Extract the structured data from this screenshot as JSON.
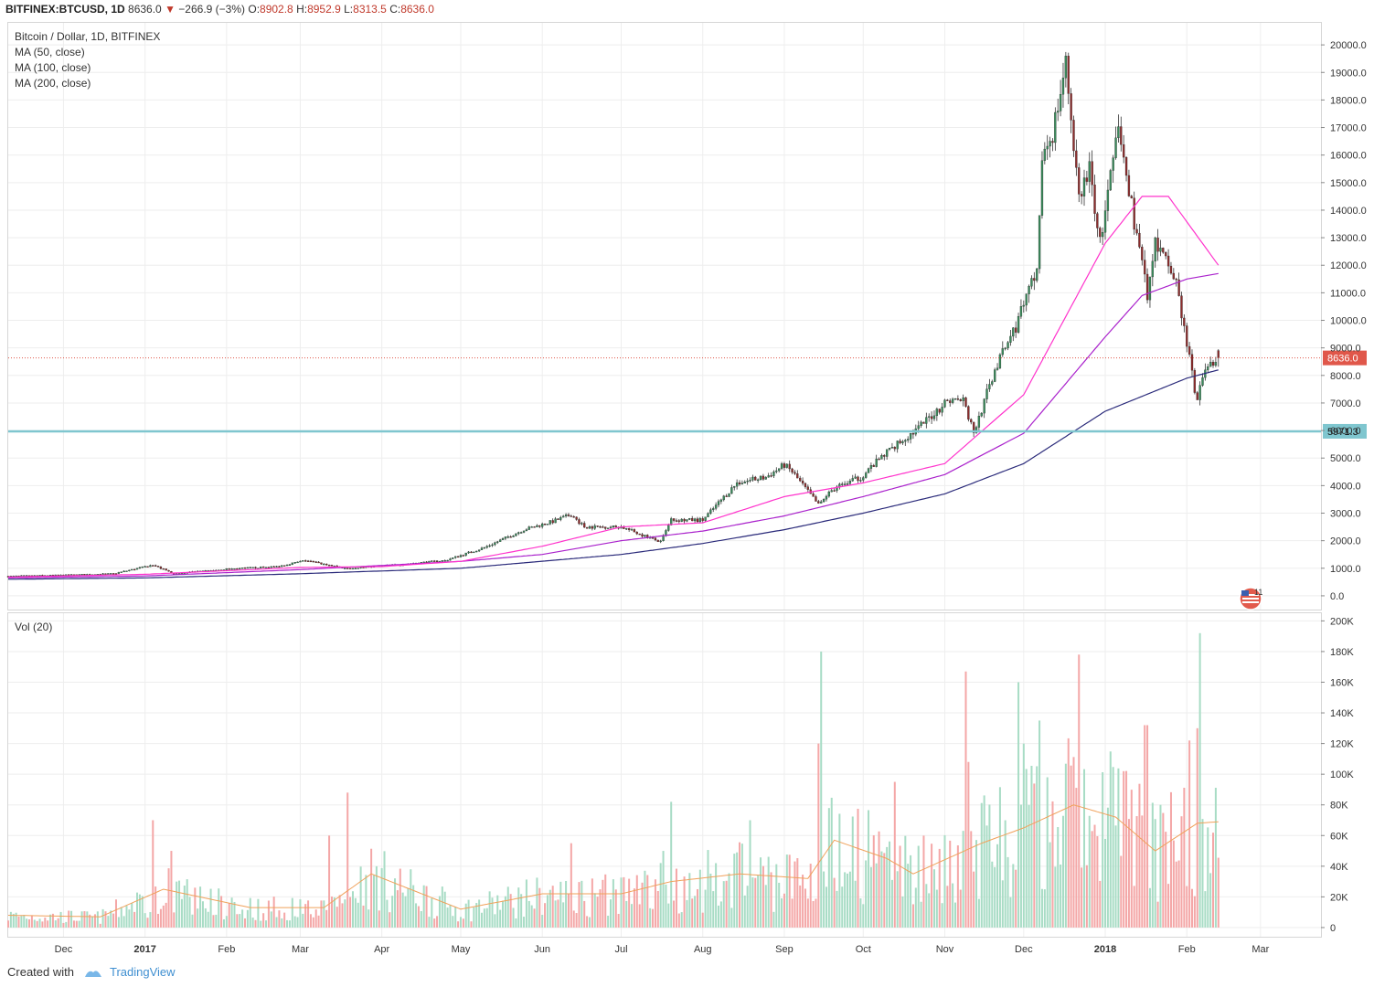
{
  "header": {
    "symbol": "BITFINEX:BTCUSD, 1D",
    "last": "8636.0",
    "change_arrow": "▼",
    "change": "−266.9 (−3%)",
    "o_label": "O:",
    "o_value": "8902.8",
    "h_label": "H:",
    "h_value": "8952.9",
    "l_label": "L:",
    "l_value": "8313.5",
    "c_label": "C:",
    "c_value": "8636.0"
  },
  "legend": {
    "title": "Bitcoin / Dollar, 1D, BITFINEX",
    "ma50": "MA (50, close)",
    "ma100": "MA (100, close)",
    "ma200": "MA (200, close)",
    "volume": "Vol (20)"
  },
  "footer": {
    "created_with": "Created with",
    "brand": "TradingView"
  },
  "colors": {
    "up": "#3a8c5c",
    "down": "#8e2c2c",
    "ma50": "#ff33cc",
    "ma100": "#aa22cc",
    "ma200": "#2a2a7a",
    "support": "#7fc6cf",
    "last_price": "#e0574a",
    "vol_up": "#a8dcc5",
    "vol_down": "#f4a7a7",
    "vol_ma": "#f0a15a"
  },
  "chart_data": [
    {
      "type": "candlestick",
      "title": "Bitcoin / Dollar, 1D, BITFINEX",
      "y_axis_ticks": [
        0,
        1000,
        2000,
        3000,
        4000,
        5000,
        6000,
        7000,
        8000,
        9000,
        10000,
        11000,
        12000,
        13000,
        14000,
        15000,
        16000,
        17000,
        18000,
        19000,
        20000
      ],
      "x_axis_ticks": [
        "Dec",
        "2017",
        "Feb",
        "Mar",
        "Apr",
        "May",
        "Jun",
        "Jul",
        "Aug",
        "Sep",
        "Oct",
        "Nov",
        "Dec",
        "2018",
        "Feb",
        "Mar"
      ],
      "x_range": [
        "2016-11-10",
        "2018-03-24"
      ],
      "y_range": [
        -500,
        20800
      ],
      "price_anchors": [
        [
          "2016-11-10",
          710
        ],
        [
          "2016-12-01",
          750
        ],
        [
          "2016-12-20",
          800
        ],
        [
          "2017-01-04",
          1120
        ],
        [
          "2017-01-12",
          800
        ],
        [
          "2017-02-01",
          970
        ],
        [
          "2017-02-20",
          1060
        ],
        [
          "2017-03-03",
          1280
        ],
        [
          "2017-03-18",
          1000
        ],
        [
          "2017-04-01",
          1080
        ],
        [
          "2017-04-25",
          1280
        ],
        [
          "2017-05-10",
          1750
        ],
        [
          "2017-05-25",
          2400
        ],
        [
          "2017-06-05",
          2700
        ],
        [
          "2017-06-12",
          2950
        ],
        [
          "2017-06-17",
          2500
        ],
        [
          "2017-07-01",
          2500
        ],
        [
          "2017-07-16",
          1950
        ],
        [
          "2017-07-20",
          2750
        ],
        [
          "2017-08-01",
          2750
        ],
        [
          "2017-08-14",
          4100
        ],
        [
          "2017-08-25",
          4300
        ],
        [
          "2017-09-01",
          4750
        ],
        [
          "2017-09-04",
          4500
        ],
        [
          "2017-09-14",
          3300
        ],
        [
          "2017-09-20",
          3900
        ],
        [
          "2017-09-30",
          4300
        ],
        [
          "2017-10-12",
          5400
        ],
        [
          "2017-10-21",
          6000
        ],
        [
          "2017-11-02",
          7100
        ],
        [
          "2017-11-08",
          7100
        ],
        [
          "2017-11-12",
          5900
        ],
        [
          "2017-11-20",
          8200
        ],
        [
          "2017-11-28",
          9800
        ],
        [
          "2017-12-06",
          11800
        ],
        [
          "2017-12-08",
          16000
        ],
        [
          "2017-12-12",
          16800
        ],
        [
          "2017-12-17",
          19300
        ],
        [
          "2017-12-22",
          14500
        ],
        [
          "2017-12-26",
          15500
        ],
        [
          "2017-12-30",
          12800
        ],
        [
          "2018-01-06",
          16900
        ],
        [
          "2018-01-10",
          14700
        ],
        [
          "2018-01-17",
          11000
        ],
        [
          "2018-01-20",
          12800
        ],
        [
          "2018-01-28",
          11400
        ],
        [
          "2018-02-01",
          9100
        ],
        [
          "2018-02-05",
          7000
        ],
        [
          "2018-02-06",
          7600
        ],
        [
          "2018-02-10",
          8500
        ],
        [
          "2018-02-13",
          8636
        ]
      ],
      "ohlc_last": {
        "date": "2018-02-13",
        "open": 8902.8,
        "high": 8952.9,
        "low": 8313.5,
        "close": 8636.0
      },
      "ma50": [
        [
          "2016-11-10",
          680
        ],
        [
          "2017-01-01",
          780
        ],
        [
          "2017-03-01",
          1030
        ],
        [
          "2017-04-01",
          1060
        ],
        [
          "2017-05-01",
          1250
        ],
        [
          "2017-06-01",
          1800
        ],
        [
          "2017-07-01",
          2500
        ],
        [
          "2017-08-01",
          2650
        ],
        [
          "2017-09-01",
          3600
        ],
        [
          "2017-10-01",
          4100
        ],
        [
          "2017-11-01",
          4800
        ],
        [
          "2017-12-01",
          7300
        ],
        [
          "2018-01-01",
          12800
        ],
        [
          "2018-01-15",
          14500
        ],
        [
          "2018-01-25",
          14500
        ],
        [
          "2018-02-13",
          12000
        ]
      ],
      "ma100": [
        [
          "2016-11-10",
          650
        ],
        [
          "2017-01-01",
          720
        ],
        [
          "2017-03-01",
          950
        ],
        [
          "2017-05-01",
          1250
        ],
        [
          "2017-06-01",
          1500
        ],
        [
          "2017-07-01",
          2000
        ],
        [
          "2017-08-01",
          2350
        ],
        [
          "2017-09-01",
          2900
        ],
        [
          "2017-10-01",
          3600
        ],
        [
          "2017-11-01",
          4400
        ],
        [
          "2017-12-01",
          5900
        ],
        [
          "2018-01-01",
          9400
        ],
        [
          "2018-01-15",
          10900
        ],
        [
          "2018-02-01",
          11500
        ],
        [
          "2018-02-13",
          11700
        ]
      ],
      "ma200": [
        [
          "2016-11-10",
          600
        ],
        [
          "2017-01-01",
          650
        ],
        [
          "2017-03-01",
          800
        ],
        [
          "2017-05-01",
          1000
        ],
        [
          "2017-07-01",
          1500
        ],
        [
          "2017-08-01",
          1900
        ],
        [
          "2017-09-01",
          2400
        ],
        [
          "2017-10-01",
          3000
        ],
        [
          "2017-11-01",
          3700
        ],
        [
          "2017-12-01",
          4800
        ],
        [
          "2018-01-01",
          6700
        ],
        [
          "2018-02-01",
          7900
        ],
        [
          "2018-02-13",
          8200
        ]
      ],
      "support_level": 5971.3,
      "last_price": 8636.0,
      "price_label": "8636.0",
      "support_label": "5971.3",
      "grid": true
    },
    {
      "type": "bar",
      "title": "Vol (20)",
      "y_axis_ticks": [
        "0",
        "20K",
        "40K",
        "60K",
        "80K",
        "100K",
        "120K",
        "140K",
        "160K",
        "180K",
        "200K"
      ],
      "y_range": [
        -6000,
        205000
      ],
      "volume_peaks": [
        [
          "2017-01-04",
          70000
        ],
        [
          "2017-01-11",
          50000
        ],
        [
          "2017-03-12",
          60000
        ],
        [
          "2017-03-19",
          88000
        ],
        [
          "2017-06-12",
          55000
        ],
        [
          "2017-07-17",
          50000
        ],
        [
          "2017-07-20",
          82000
        ],
        [
          "2017-08-19",
          70000
        ],
        [
          "2017-09-14",
          120000
        ],
        [
          "2017-09-15",
          180000
        ],
        [
          "2017-10-13",
          95000
        ],
        [
          "2017-11-09",
          167000
        ],
        [
          "2017-11-10",
          108000
        ],
        [
          "2017-11-29",
          160000
        ],
        [
          "2017-12-01",
          120000
        ],
        [
          "2017-12-07",
          135000
        ],
        [
          "2017-12-22",
          178000
        ],
        [
          "2018-01-16",
          132000
        ],
        [
          "2018-01-17",
          132000
        ],
        [
          "2018-02-02",
          122000
        ],
        [
          "2018-02-05",
          130000
        ],
        [
          "2018-02-06",
          192000
        ]
      ],
      "volume_ma_anchors": [
        [
          "2016-11-10",
          8000
        ],
        [
          "2016-12-15",
          7000
        ],
        [
          "2017-01-08",
          25000
        ],
        [
          "2017-02-10",
          13000
        ],
        [
          "2017-03-10",
          13000
        ],
        [
          "2017-03-28",
          35000
        ],
        [
          "2017-05-01",
          12000
        ],
        [
          "2017-06-01",
          22000
        ],
        [
          "2017-07-01",
          22000
        ],
        [
          "2017-07-20",
          30000
        ],
        [
          "2017-08-15",
          35000
        ],
        [
          "2017-09-10",
          32000
        ],
        [
          "2017-09-20",
          57000
        ],
        [
          "2017-10-10",
          45000
        ],
        [
          "2017-10-20",
          35000
        ],
        [
          "2017-11-15",
          55000
        ],
        [
          "2017-12-01",
          65000
        ],
        [
          "2017-12-20",
          80000
        ],
        [
          "2018-01-05",
          72000
        ],
        [
          "2018-01-20",
          50000
        ],
        [
          "2018-02-05",
          68000
        ],
        [
          "2018-02-13",
          69000
        ]
      ],
      "grid": true
    }
  ]
}
